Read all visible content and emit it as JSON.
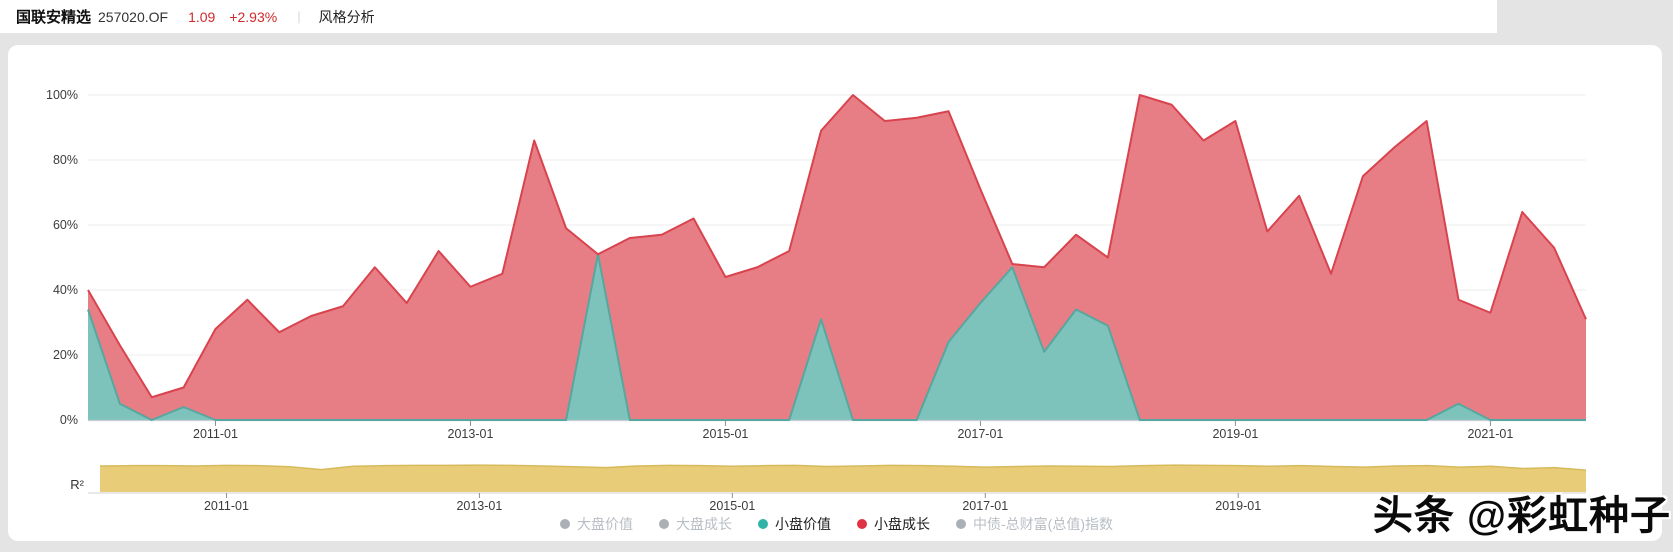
{
  "header": {
    "title": "国联安精选",
    "code": "257020.OF",
    "nav": "1.09",
    "change": "+2.93%",
    "divider": "|",
    "tab": "风格分析"
  },
  "watermark": "头条 @彩虹种子",
  "colors": {
    "page_bg": "#e4e4e4",
    "card_bg": "#ffffff",
    "quote_red": "#d02a2a",
    "grid": "#ededed",
    "axis_line": "#c6ccd2",
    "tick": "#8c9196",
    "axis_text": "#3c3c3c",
    "small_value_fill": "#7dc3bc",
    "small_value_stroke": "#56a79f",
    "small_growth_fill": "#e87e85",
    "small_growth_stroke": "#d8434e",
    "r2_fill": "#e9cc78",
    "r2_stroke": "#d6ba5c",
    "r2_axis": "#d2d2d2",
    "legend_gray": "#aab0b6"
  },
  "chart_data": {
    "type": "area",
    "title": "风格分析",
    "stacked": true,
    "ylim": [
      0,
      100
    ],
    "grid": true,
    "legend_position": "bottom",
    "categories": [
      "2010-01",
      "2010-04",
      "2010-07",
      "2010-10",
      "2011-01",
      "2011-04",
      "2011-07",
      "2011-10",
      "2012-01",
      "2012-04",
      "2012-07",
      "2012-10",
      "2013-01",
      "2013-04",
      "2013-07",
      "2013-10",
      "2014-01",
      "2014-04",
      "2014-07",
      "2014-10",
      "2015-01",
      "2015-04",
      "2015-07",
      "2015-10",
      "2016-01",
      "2016-04",
      "2016-07",
      "2016-10",
      "2017-01",
      "2017-04",
      "2017-07",
      "2017-10",
      "2018-01",
      "2018-04",
      "2018-07",
      "2018-10",
      "2019-01",
      "2019-04",
      "2019-07",
      "2019-10",
      "2020-01",
      "2020-04",
      "2020-07",
      "2020-10",
      "2021-01",
      "2021-04",
      "2021-07",
      "2021-10"
    ],
    "series": [
      {
        "name": "小盘价值",
        "color": "#7dc3bc",
        "values": [
          34,
          5,
          0,
          4,
          0,
          0,
          0,
          0,
          0,
          0,
          0,
          0,
          0,
          0,
          0,
          0,
          51,
          0,
          0,
          0,
          0,
          0,
          0,
          31,
          0,
          0,
          0,
          24,
          36,
          47,
          21,
          34,
          29,
          0,
          0,
          0,
          0,
          0,
          0,
          0,
          0,
          0,
          0,
          5,
          0,
          0,
          0,
          0
        ]
      },
      {
        "name": "小盘成长",
        "color": "#e87e85",
        "values": [
          6,
          18,
          7,
          6,
          28,
          37,
          27,
          32,
          35,
          47,
          36,
          52,
          41,
          45,
          86,
          59,
          0,
          56,
          57,
          62,
          44,
          47,
          52,
          58,
          100,
          92,
          93,
          71,
          35,
          1,
          26,
          23,
          21,
          100,
          97,
          86,
          92,
          58,
          69,
          45,
          75,
          84,
          92,
          32,
          33,
          64,
          53,
          31
        ]
      }
    ],
    "y_ticks": [
      {
        "label": "0%",
        "value": 0
      },
      {
        "label": "20%",
        "value": 20
      },
      {
        "label": "40%",
        "value": 40
      },
      {
        "label": "60%",
        "value": 60
      },
      {
        "label": "80%",
        "value": 80
      },
      {
        "label": "100%",
        "value": 100
      }
    ],
    "x_ticks": [
      "2011-01",
      "2013-01",
      "2015-01",
      "2017-01",
      "2019-01",
      "2021-01"
    ],
    "r2": {
      "label": "R²",
      "values": [
        0.93,
        0.94,
        0.94,
        0.93,
        0.95,
        0.94,
        0.9,
        0.8,
        0.92,
        0.94,
        0.95,
        0.95,
        0.96,
        0.95,
        0.93,
        0.9,
        0.87,
        0.93,
        0.95,
        0.94,
        0.92,
        0.94,
        0.95,
        0.91,
        0.93,
        0.95,
        0.94,
        0.92,
        0.89,
        0.91,
        0.93,
        0.92,
        0.91,
        0.94,
        0.96,
        0.95,
        0.94,
        0.92,
        0.94,
        0.91,
        0.89,
        0.93,
        0.94,
        0.89,
        0.92,
        0.84,
        0.87,
        0.78
      ],
      "x_ticks": [
        "2011-01",
        "2013-01",
        "2015-01",
        "2017-01",
        "2019-01"
      ]
    }
  },
  "legend": [
    {
      "label": "大盘价值",
      "dot_color": "#aab0b6",
      "active": false
    },
    {
      "label": "大盘成长",
      "dot_color": "#aab0b6",
      "active": false
    },
    {
      "label": "小盘价值",
      "dot_color": "#2fb3a6",
      "active": true
    },
    {
      "label": "小盘成长",
      "dot_color": "#e03244",
      "active": true
    },
    {
      "label": "中债-总财富(总值)指数",
      "dot_color": "#aab0b6",
      "active": false
    }
  ]
}
